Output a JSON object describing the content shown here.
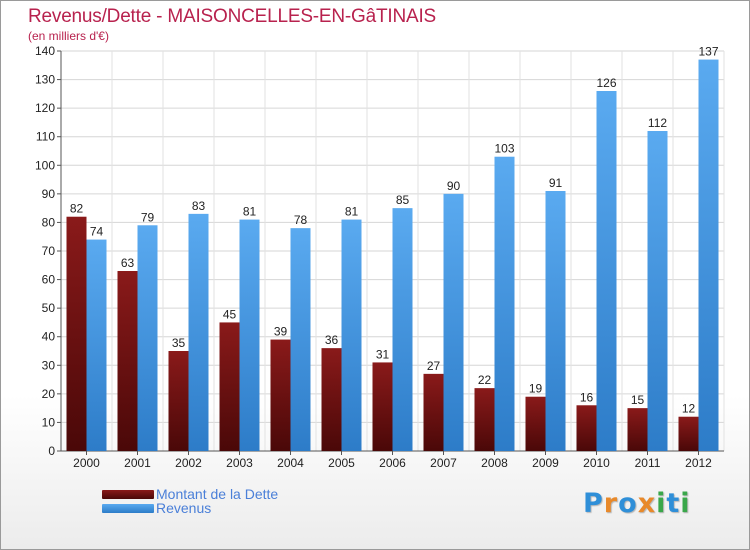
{
  "title": "Revenus/Dette - MAISONCELLES-EN-GâTINAIS",
  "subtitle": "(en milliers d'€)",
  "logo": {
    "text": "Proxiti",
    "letters": [
      "P",
      "r",
      "o",
      "x",
      "i",
      "t",
      "i"
    ],
    "colors": [
      "#2f8fd8",
      "#e8892a",
      "#2f8fd8",
      "#e8892a",
      "#3aa74a",
      "#2f8fd8",
      "#3aa74a"
    ]
  },
  "colors": {
    "debt_top": "#8a1a1a",
    "debt_bottom": "#4a0808",
    "revenue_top": "#5aaaf0",
    "revenue_bottom": "#2d7cc8",
    "title": "#b8224e",
    "legend_text": "#4a7fd8"
  },
  "chart_data": {
    "type": "bar",
    "title": "Revenus/Dette - MAISONCELLES-EN-GâTINAIS",
    "ylabel": "(en milliers d'€)",
    "categories": [
      "2000",
      "2001",
      "2002",
      "2003",
      "2004",
      "2005",
      "2006",
      "2007",
      "2008",
      "2009",
      "2010",
      "2011",
      "2012"
    ],
    "series": [
      {
        "name": "Montant de la Dette",
        "values": [
          82,
          63,
          35,
          45,
          39,
          36,
          31,
          27,
          22,
          19,
          16,
          15,
          12
        ]
      },
      {
        "name": "Revenus",
        "values": [
          74,
          79,
          83,
          81,
          78,
          81,
          85,
          90,
          103,
          91,
          126,
          112,
          137
        ]
      }
    ],
    "ylim": [
      0,
      140
    ],
    "yticks": [
      0,
      10,
      20,
      30,
      40,
      50,
      60,
      70,
      80,
      90,
      100,
      110,
      120,
      130,
      140
    ],
    "grid": true,
    "legend_position": "bottom-left"
  }
}
